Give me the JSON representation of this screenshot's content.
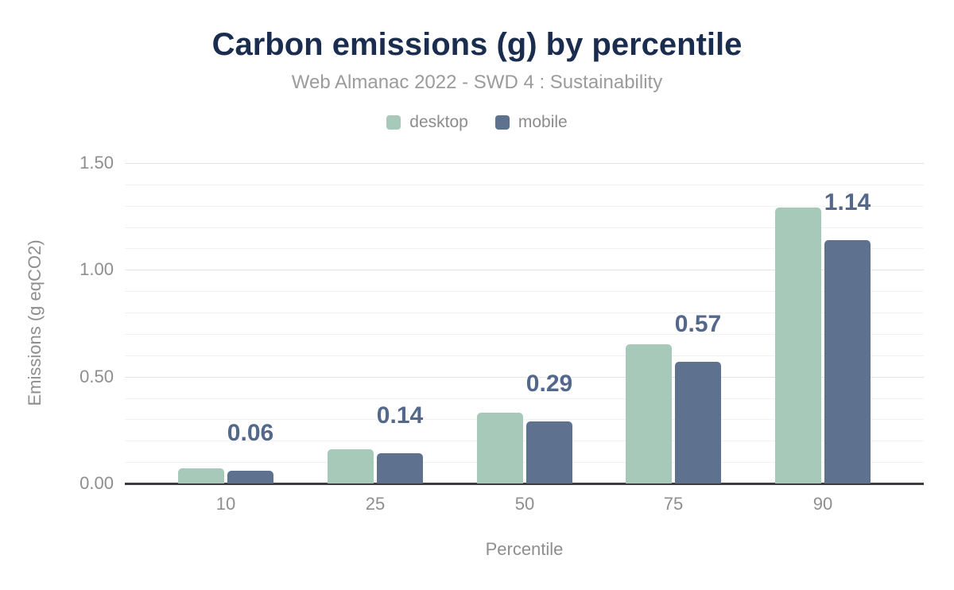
{
  "header": {
    "title": "Carbon emissions (g) by percentile",
    "subtitle": "Web Almanac 2022 - SWD 4 : Sustainability"
  },
  "chart_data": {
    "type": "bar",
    "title": "Carbon emissions (g) by percentile",
    "subtitle": "Web Almanac 2022 - SWD 4 : Sustainability",
    "categories": [
      "10",
      "25",
      "50",
      "75",
      "90"
    ],
    "series": [
      {
        "name": "desktop",
        "color": "#a6c9ba",
        "values": [
          0.07,
          0.16,
          0.33,
          0.65,
          1.29
        ]
      },
      {
        "name": "mobile",
        "color": "#5e718e",
        "values": [
          0.06,
          0.14,
          0.29,
          0.57,
          1.14
        ]
      }
    ],
    "data_labels": {
      "series": "mobile",
      "values": [
        "0.06",
        "0.14",
        "0.29",
        "0.57",
        "1.14"
      ],
      "color": "#54688c"
    },
    "xlabel": "Percentile",
    "ylabel": "Emissions (g eqCO2)",
    "ylim": [
      0,
      1.5
    ],
    "y_ticks": [
      {
        "value": 0.0,
        "label": "0.00"
      },
      {
        "value": 0.5,
        "label": "0.50"
      },
      {
        "value": 1.0,
        "label": "1.00"
      },
      {
        "value": 1.5,
        "label": "1.50"
      }
    ],
    "minor_grid_step": 0.1,
    "grid": true,
    "legend_position": "top"
  },
  "colors": {
    "title": "#1b2d4f",
    "subtitle": "#9b9b9b",
    "axis_text": "#8e8e8e",
    "gridline_major": "#e3e3e6",
    "gridline_minor": "#f2f2f3",
    "baseline": "#3a3b3f",
    "background": "#ffffff"
  }
}
